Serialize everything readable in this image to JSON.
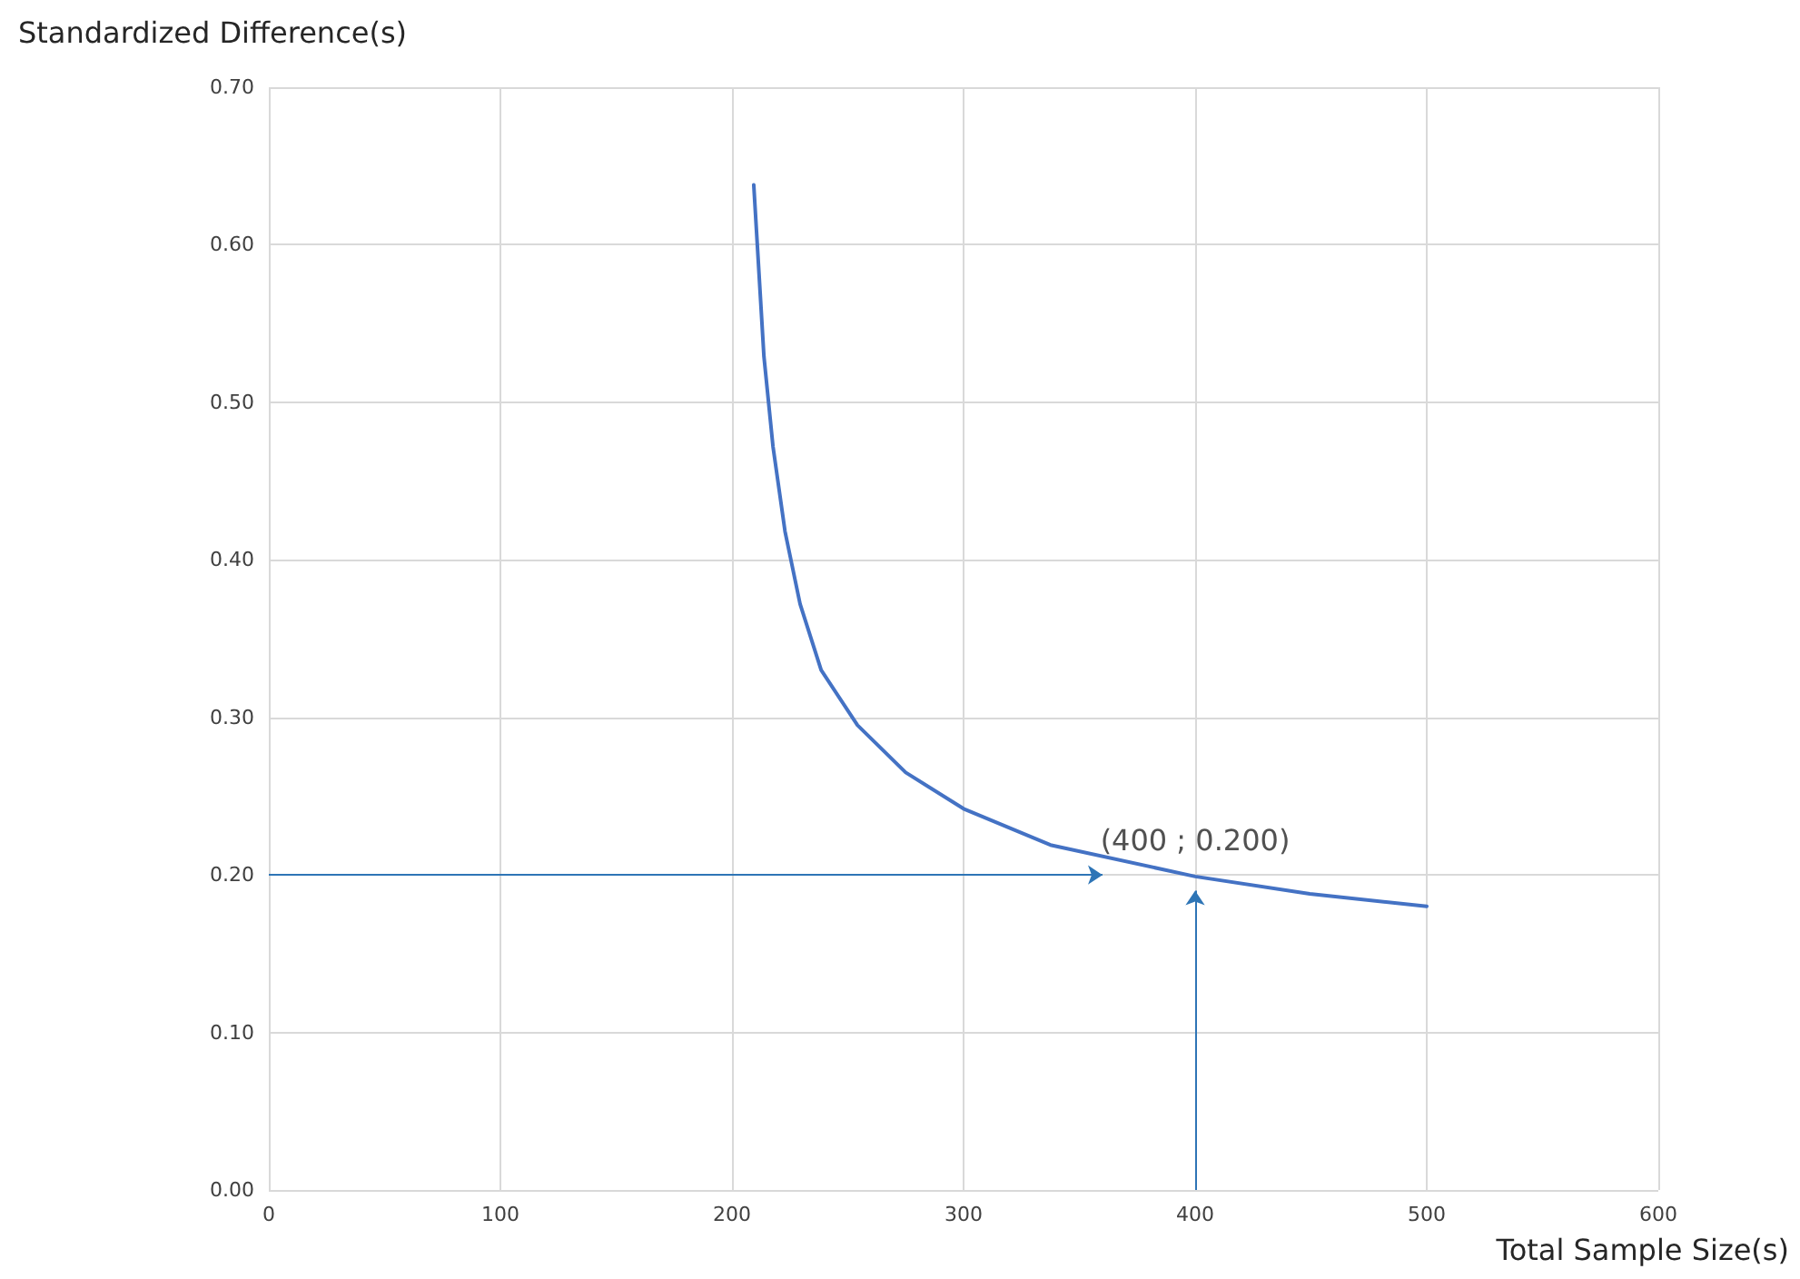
{
  "chart_data": {
    "type": "line",
    "xlabel": "Total Sample Size(s)",
    "ylabel": "Standardized Difference(s)",
    "series": [
      {
        "color": "#4472c4",
        "x": [
          209.4,
          213.8,
          217.7,
          222.9,
          229.4,
          238.5,
          254.2,
          275,
          300,
          337.5,
          400,
          449.5,
          500
        ],
        "values": [
          0.638,
          0.529,
          0.472,
          0.418,
          0.372,
          0.33,
          0.295,
          0.265,
          0.242,
          0.219,
          0.199,
          0.188,
          0.18
        ]
      }
    ],
    "xlim": [
      0,
      600
    ],
    "xticks": [
      0,
      100,
      200,
      300,
      400,
      500,
      600
    ],
    "ylim": [
      0,
      0.7
    ],
    "yticks": [
      {
        "value": 0,
        "label": "0.00"
      },
      {
        "value": 0.1,
        "label": "0.10"
      },
      {
        "value": 0.2,
        "label": "0.20"
      },
      {
        "value": 0.3,
        "label": "0.30"
      },
      {
        "value": 0.4,
        "label": "0.40"
      },
      {
        "value": 0.5,
        "label": "0.50"
      },
      {
        "value": 0.6,
        "label": "0.60"
      },
      {
        "value": 0.7,
        "label": "0.70"
      }
    ],
    "grid": true,
    "marker": "none",
    "line_style": "solid",
    "annotations": [
      {
        "text": "(400 ; 0.200)",
        "x": 400,
        "y": 0.2
      }
    ]
  }
}
